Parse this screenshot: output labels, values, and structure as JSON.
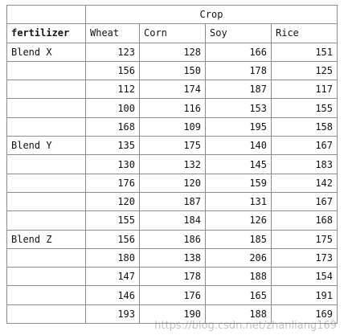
{
  "table": {
    "group_header": "Crop",
    "row_header": "fertilizer",
    "columns": [
      "Wheat",
      "Corn",
      "Soy",
      "Rice"
    ],
    "rows": [
      {
        "blend": "Blend X",
        "values": [
          "123",
          "128",
          "166",
          "151"
        ]
      },
      {
        "blend": "",
        "values": [
          "156",
          "150",
          "178",
          "125"
        ]
      },
      {
        "blend": "",
        "values": [
          "112",
          "174",
          "187",
          "117"
        ]
      },
      {
        "blend": "",
        "values": [
          "100",
          "116",
          "153",
          "155"
        ]
      },
      {
        "blend": "",
        "values": [
          "168",
          "109",
          "195",
          "158"
        ]
      },
      {
        "blend": "Blend Y",
        "values": [
          "135",
          "175",
          "140",
          "167"
        ]
      },
      {
        "blend": "",
        "values": [
          "130",
          "132",
          "145",
          "183"
        ]
      },
      {
        "blend": "",
        "values": [
          "176",
          "120",
          "159",
          "142"
        ]
      },
      {
        "blend": "",
        "values": [
          "120",
          "187",
          "131",
          "167"
        ]
      },
      {
        "blend": "",
        "values": [
          "155",
          "184",
          "126",
          "168"
        ]
      },
      {
        "blend": "Blend Z",
        "values": [
          "156",
          "186",
          "185",
          "175"
        ]
      },
      {
        "blend": "",
        "values": [
          "180",
          "138",
          "206",
          "173"
        ]
      },
      {
        "blend": "",
        "values": [
          "147",
          "178",
          "188",
          "154"
        ]
      },
      {
        "blend": "",
        "values": [
          "146",
          "176",
          "165",
          "191"
        ]
      },
      {
        "blend": "",
        "values": [
          "193",
          "190",
          "188",
          "169"
        ]
      }
    ]
  },
  "watermark": "https://blog.csdn.net/zhanliang169"
}
